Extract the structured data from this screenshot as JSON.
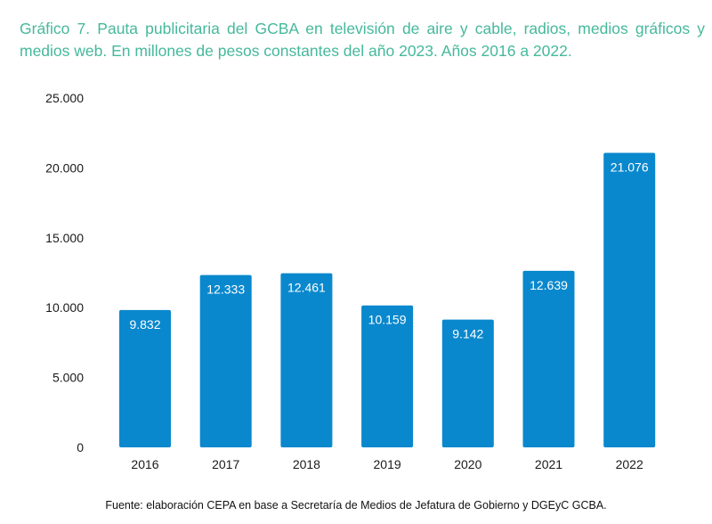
{
  "title": "Gráfico 7. Pauta publicitaria del GCBA en televisión de aire y cable, radios, medios gráficos y medios web. En millones de pesos constantes del año 2023. Años 2016 a 2022.",
  "source": "Fuente: elaboración CEPA en base a Secretaría de Medios de Jefatura de Gobierno y DGEyC GCBA.",
  "colors": {
    "title": "#45b99a",
    "bar": "#0a88cd",
    "label": "#ffffff",
    "axis_text": "#1a1a1a"
  },
  "chart_data": {
    "type": "bar",
    "title": "Gráfico 7. Pauta publicitaria del GCBA en televisión de aire y cable, radios, medios gráficos y medios web. En millones de pesos constantes del año 2023. Años 2016 a 2022.",
    "xlabel": "",
    "ylabel": "",
    "categories": [
      "2016",
      "2017",
      "2018",
      "2019",
      "2020",
      "2021",
      "2022"
    ],
    "values": [
      9832,
      12333,
      12461,
      10159,
      9142,
      12639,
      21076
    ],
    "value_labels": [
      "9.832",
      "12.333",
      "12.461",
      "10.159",
      "9.142",
      "12.639",
      "21.076"
    ],
    "ylim": [
      0,
      25000
    ],
    "yticks": [
      0,
      5000,
      10000,
      15000,
      20000,
      25000
    ],
    "ytick_labels": [
      "0",
      "5.000",
      "10.000",
      "15.000",
      "20.000",
      "25.000"
    ],
    "grid": false,
    "legend": "none"
  }
}
